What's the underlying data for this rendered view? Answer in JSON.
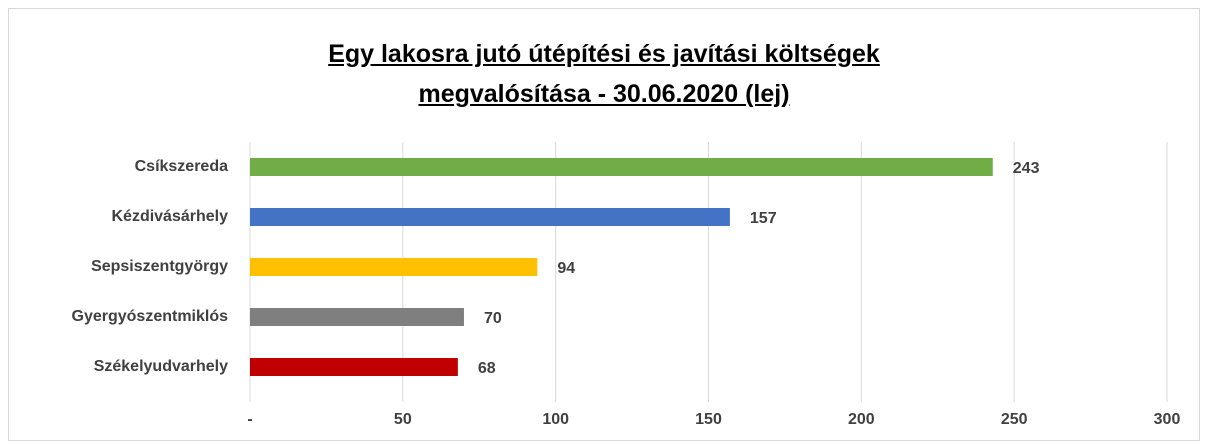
{
  "chart_data": {
    "type": "barh",
    "title": "Egy lakosra jutó útépítési és javítási költségek megvalósítása - 30.06.2020 (lej)",
    "categories": [
      "Csíkszereda",
      "Kézdivásárhely",
      "Sepsiszentgyörgy",
      "Gyergyószentmiklós",
      "Székelyudvarhely"
    ],
    "values": [
      243,
      157,
      94,
      70,
      68
    ],
    "colors": [
      "#70ad47",
      "#4472c4",
      "#ffc000",
      "#7f7f7f",
      "#c00000"
    ],
    "xlim": [
      0,
      300
    ],
    "xticks": [
      {
        "value": 0,
        "label": "-"
      },
      50,
      100,
      150,
      200,
      250,
      300
    ],
    "grid": true
  }
}
